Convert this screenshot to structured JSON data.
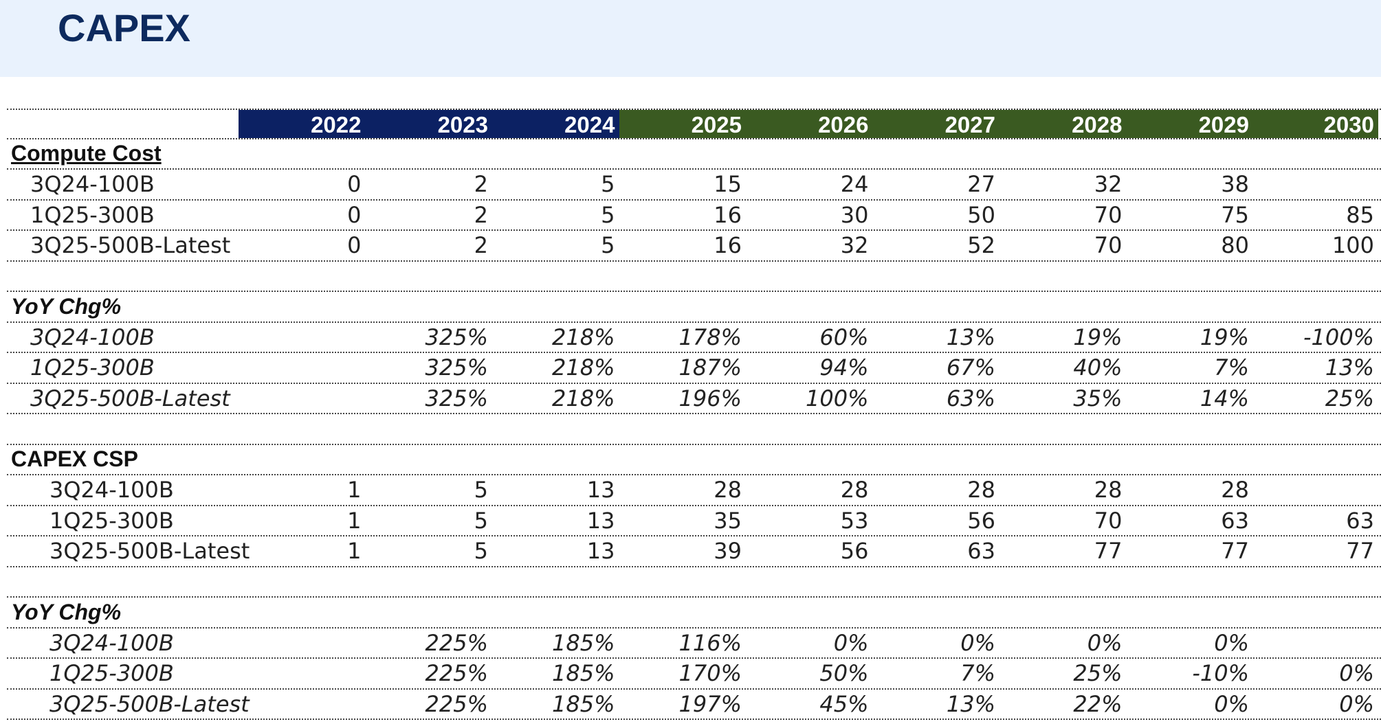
{
  "title": "CAPEX",
  "years": [
    "2022",
    "2023",
    "2024",
    "2025",
    "2026",
    "2027",
    "2028",
    "2029",
    "2030"
  ],
  "colors": {
    "banner_bg": "#e9f2fd",
    "title": "#0d2a5e",
    "header_actual": "#0c2163",
    "header_forecast": "#3a5a21"
  },
  "sections": [
    {
      "title": "Compute Cost",
      "style": "underline",
      "indent": 1,
      "italic": false,
      "rows": [
        {
          "label": "3Q24-100B",
          "values": [
            "0",
            "2",
            "5",
            "15",
            "24",
            "27",
            "32",
            "38",
            ""
          ]
        },
        {
          "label": "1Q25-300B",
          "values": [
            "0",
            "2",
            "5",
            "16",
            "30",
            "50",
            "70",
            "75",
            "85"
          ]
        },
        {
          "label": "3Q25-500B-Latest",
          "values": [
            "0",
            "2",
            "5",
            "16",
            "32",
            "52",
            "70",
            "80",
            "100"
          ]
        }
      ]
    },
    {
      "title": "YoY Chg%",
      "style": "italic",
      "indent": 1,
      "italic": true,
      "rows": [
        {
          "label": "3Q24-100B",
          "values": [
            "",
            "325%",
            "218%",
            "178%",
            "60%",
            "13%",
            "19%",
            "19%",
            "-100%"
          ]
        },
        {
          "label": "1Q25-300B",
          "values": [
            "",
            "325%",
            "218%",
            "187%",
            "94%",
            "67%",
            "40%",
            "7%",
            "13%"
          ]
        },
        {
          "label": "3Q25-500B-Latest",
          "values": [
            "",
            "325%",
            "218%",
            "196%",
            "100%",
            "63%",
            "35%",
            "14%",
            "25%"
          ]
        }
      ]
    },
    {
      "title": "CAPEX CSP",
      "style": "plain",
      "indent": 2,
      "italic": false,
      "rows": [
        {
          "label": "3Q24-100B",
          "values": [
            "1",
            "5",
            "13",
            "28",
            "28",
            "28",
            "28",
            "28",
            ""
          ]
        },
        {
          "label": "1Q25-300B",
          "values": [
            "1",
            "5",
            "13",
            "35",
            "53",
            "56",
            "70",
            "63",
            "63"
          ]
        },
        {
          "label": "3Q25-500B-Latest",
          "values": [
            "1",
            "5",
            "13",
            "39",
            "56",
            "63",
            "77",
            "77",
            "77"
          ]
        }
      ]
    },
    {
      "title": "YoY Chg%",
      "style": "italic",
      "indent": 2,
      "italic": true,
      "rows": [
        {
          "label": "3Q24-100B",
          "values": [
            "",
            "225%",
            "185%",
            "116%",
            "0%",
            "0%",
            "0%",
            "0%",
            ""
          ]
        },
        {
          "label": "1Q25-300B",
          "values": [
            "",
            "225%",
            "185%",
            "170%",
            "50%",
            "7%",
            "25%",
            "-10%",
            "0%"
          ]
        },
        {
          "label": "3Q25-500B-Latest",
          "values": [
            "",
            "225%",
            "185%",
            "197%",
            "45%",
            "13%",
            "22%",
            "0%",
            "0%"
          ]
        }
      ]
    }
  ]
}
